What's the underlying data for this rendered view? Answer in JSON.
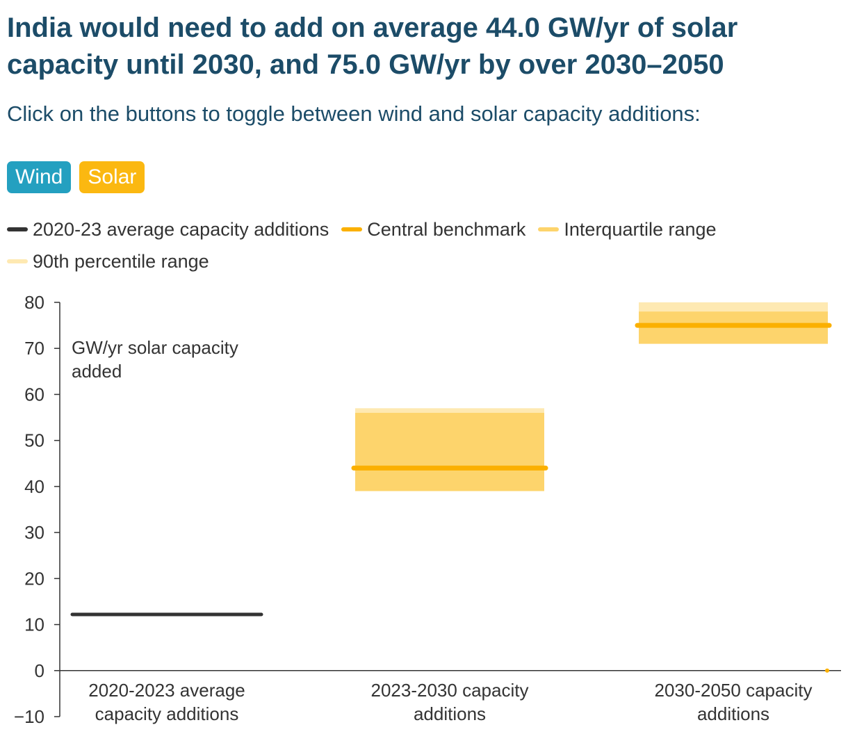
{
  "header": {
    "title": "India would need to add on average 44.0 GW/yr of solar capacity until 2030, and 75.0 GW/yr by over 2030–2050",
    "subtitle": "Click on the buttons to toggle between wind and solar capacity additions:"
  },
  "toggles": {
    "wind_label": "Wind",
    "solar_label": "Solar",
    "selected": "Solar"
  },
  "legend": {
    "items": [
      {
        "label": "2020-23 average capacity additions",
        "color": "#333333"
      },
      {
        "label": "Central benchmark",
        "color": "#fbb000"
      },
      {
        "label": "Interquartile range",
        "color": "#fdd46c"
      },
      {
        "label": "90th percentile range",
        "color": "#fee9b2"
      }
    ]
  },
  "colors": {
    "historic": "#333333",
    "benchmark": "#fbb000",
    "interquartile": "#fdd46c",
    "p90": "#fee9b2",
    "wind_button": "#24a0c0",
    "solar_button": "#fbb811",
    "title": "#1c4c68"
  },
  "chart_data": {
    "type": "bar",
    "unit_label": [
      "GW/yr solar capacity",
      "added"
    ],
    "ylim": [
      -10,
      80
    ],
    "yticks": [
      -10,
      0,
      10,
      20,
      30,
      40,
      50,
      60,
      70,
      80
    ],
    "ytick_labels": [
      "−10",
      "0",
      "10",
      "20",
      "30",
      "40",
      "50",
      "60",
      "70",
      "80"
    ],
    "grid": false,
    "legend_position": "top",
    "categories": [
      {
        "label": [
          "2020-2023 average",
          "capacity additions"
        ],
        "historic": 12.2
      },
      {
        "label": [
          "2023-2030 capacity",
          "additions"
        ],
        "central": 44.0,
        "interquartile": [
          39.0,
          56.0
        ],
        "p90": [
          39.0,
          57.0
        ]
      },
      {
        "label": [
          "2030-2050 capacity",
          "additions"
        ],
        "central": 75.0,
        "interquartile": [
          71.0,
          78.0
        ],
        "p90": [
          71.0,
          80.0
        ]
      }
    ]
  }
}
